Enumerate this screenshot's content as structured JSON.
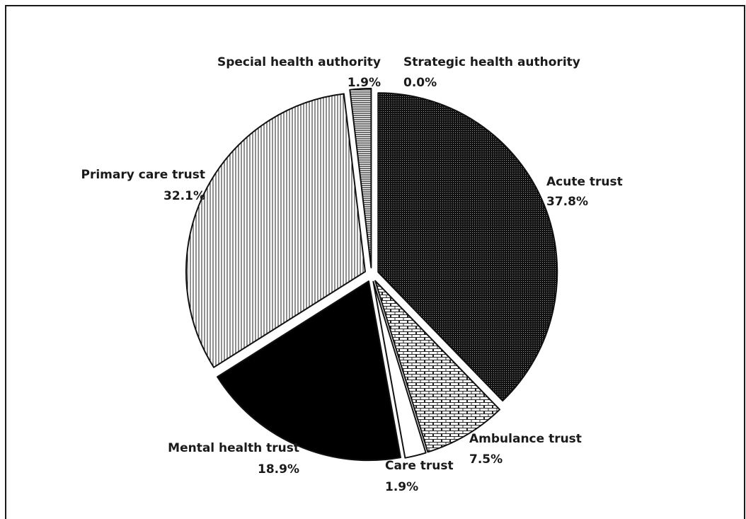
{
  "chart_data": {
    "type": "pie",
    "categories": [
      "Acute trust",
      "Ambulance trust",
      "Care trust",
      "Mental health trust",
      "Primary care trust",
      "Special health authority",
      "Strategic health authority"
    ],
    "values": [
      37.8,
      7.5,
      1.9,
      18.9,
      32.1,
      1.9,
      0.0
    ],
    "value_labels": [
      "37.8%",
      "7.5%",
      "1.9%",
      "18.9%",
      "32.1%",
      "1.9%",
      "0.0%"
    ],
    "slice_fills": [
      "dense-dots",
      "brick",
      "white",
      "solid-black",
      "vertical-lines",
      "horizontal-lines",
      "none"
    ],
    "exploded": true,
    "start_angle": "12 o'clock, clockwise",
    "legend": "none"
  }
}
